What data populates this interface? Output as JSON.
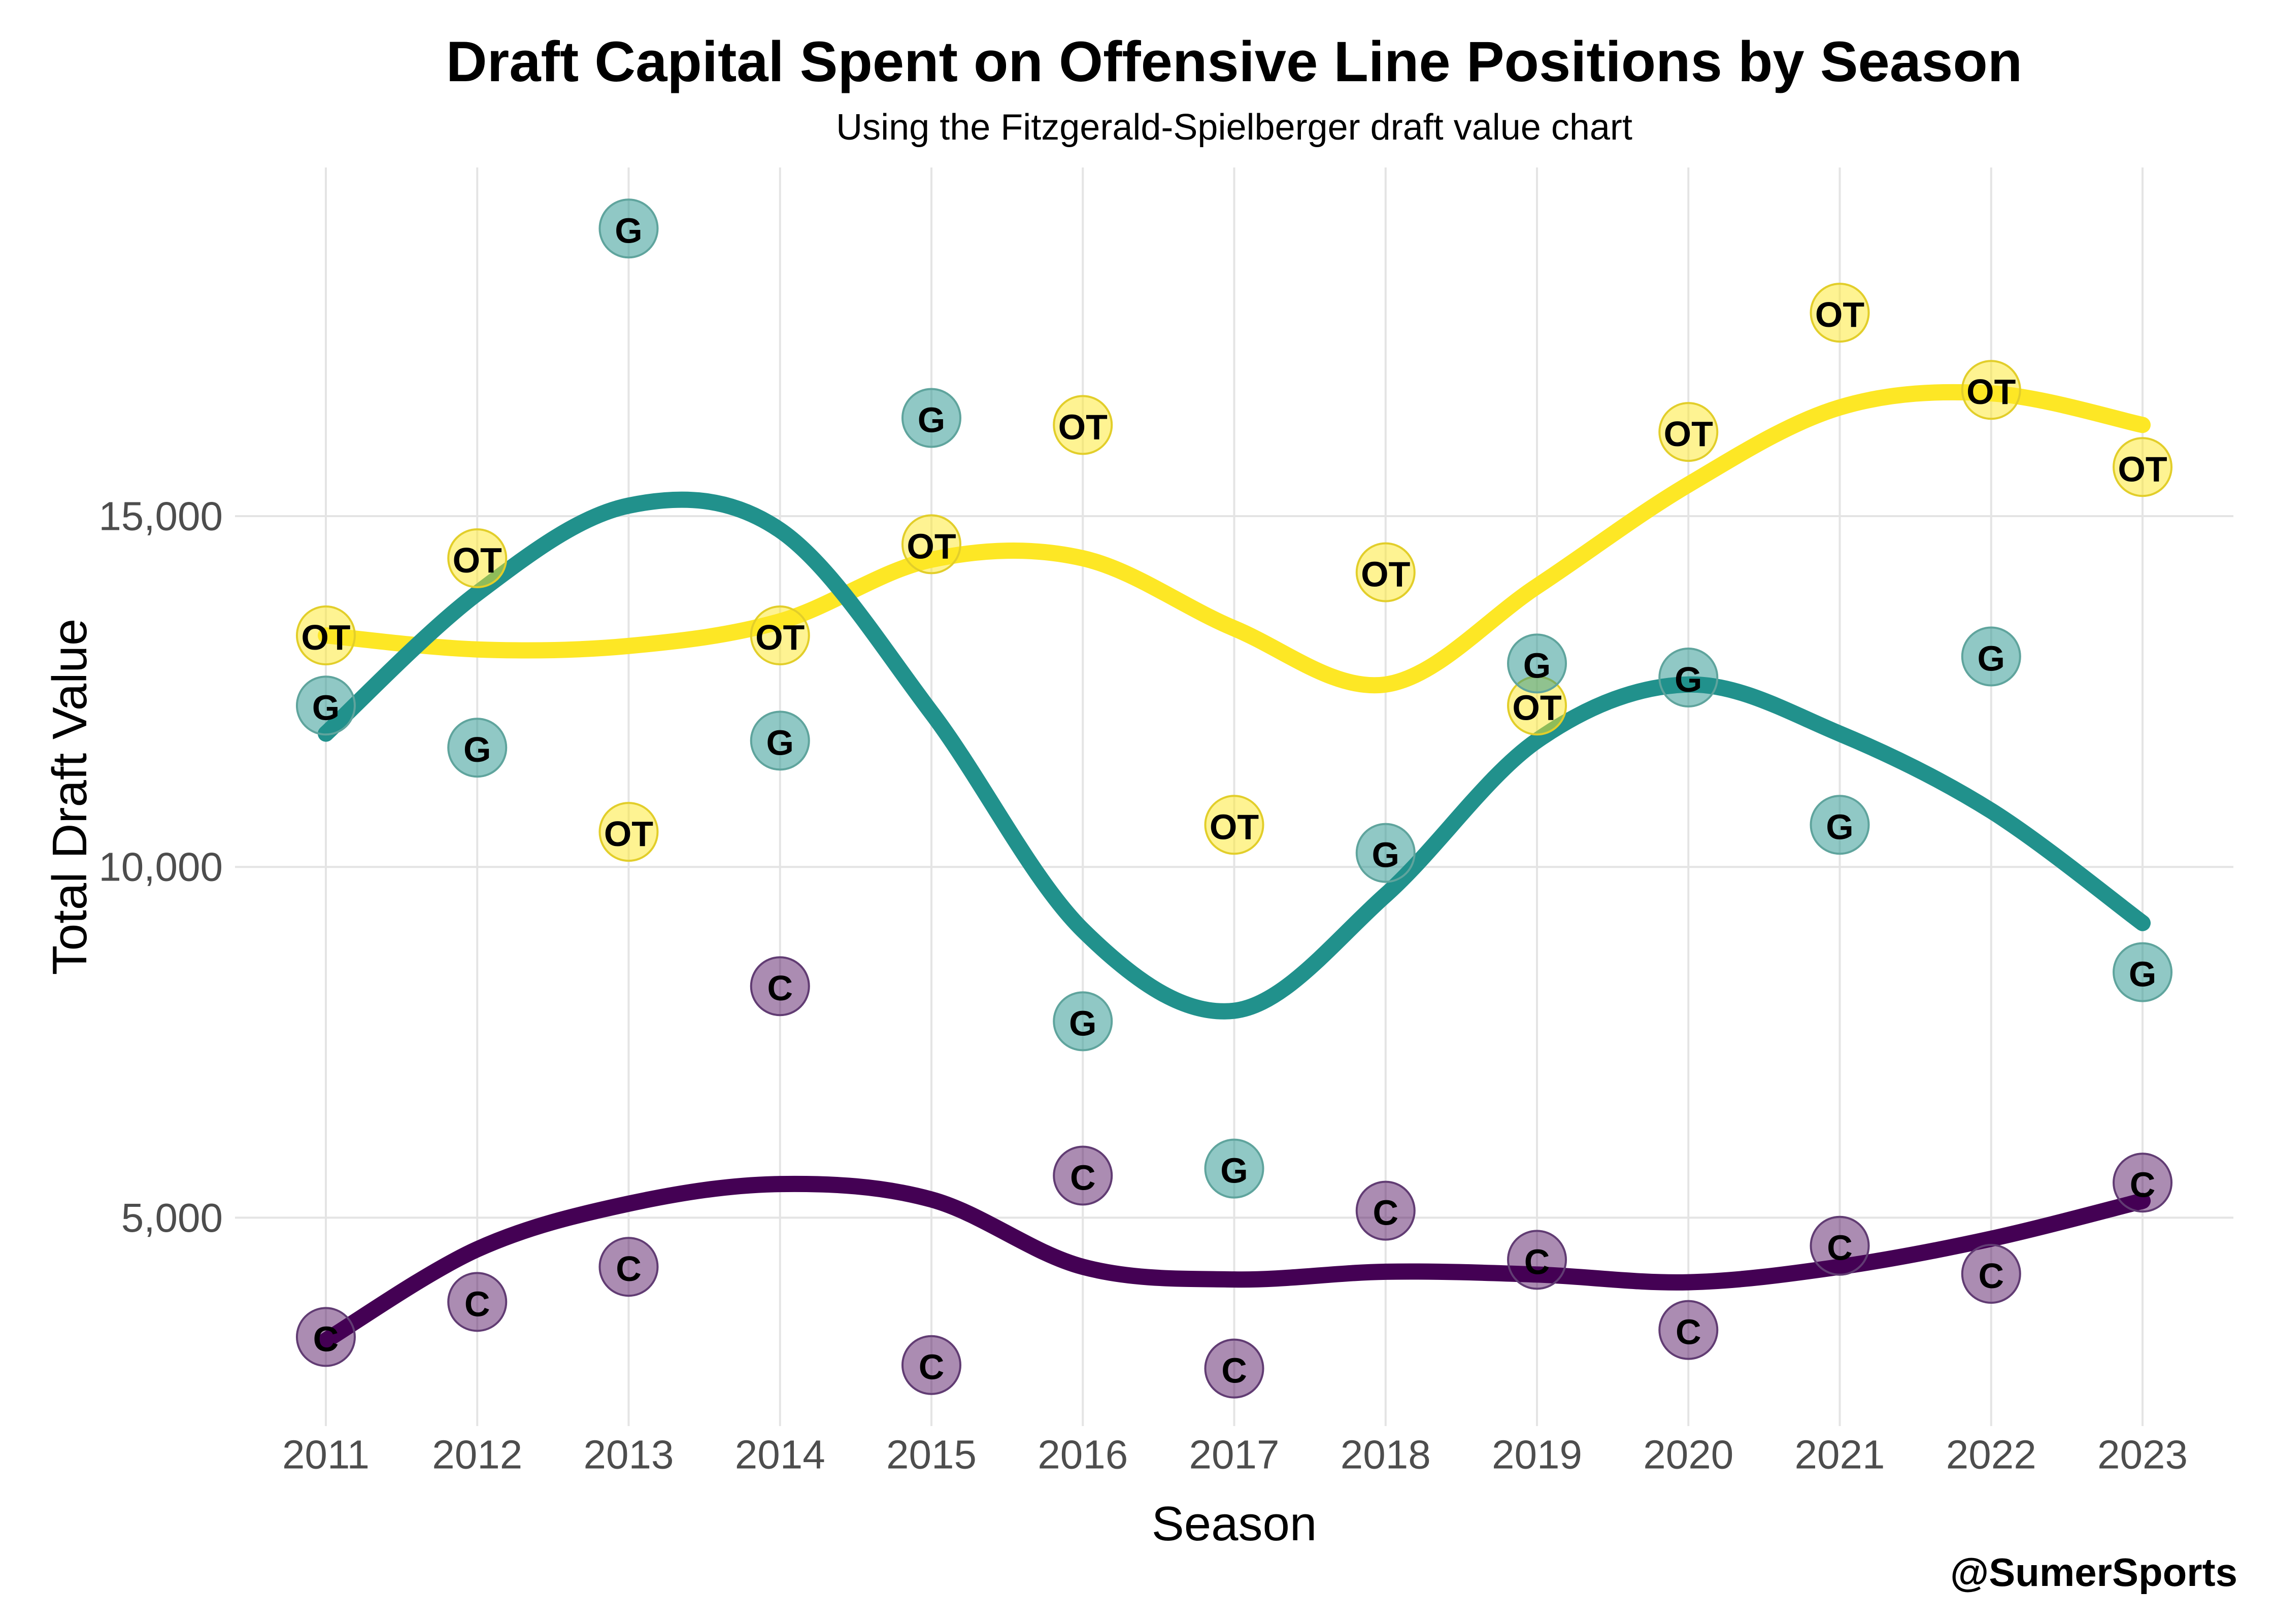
{
  "watermark": "@SumerSports",
  "header": {
    "title": "Draft Capital Spent on Offensive Line Positions by Season",
    "subtitle": "Using the Fitzgerald-Spielberger draft value chart"
  },
  "style": {
    "grid_color": "#E4E4E4",
    "tick_label_color": "#4D4D4D",
    "point_label_color": "#000000",
    "background": "#FFFFFF"
  },
  "chart_data": {
    "type": "scatter",
    "title": "Draft Capital Spent on Offensive Line Positions by Season",
    "subtitle": "Using the Fitzgerald-Spielberger draft value chart",
    "xlabel": "Season",
    "ylabel": "Total Draft Value",
    "legend_position": "none",
    "smoother": "loess trend line per position, points labeled with position code",
    "grid": "major only",
    "xlim": [
      2010.4,
      2023.6
    ],
    "ylim": [
      2030,
      19970
    ],
    "x_ticks": [
      2011,
      2012,
      2013,
      2014,
      2015,
      2016,
      2017,
      2018,
      2019,
      2020,
      2021,
      2022,
      2023
    ],
    "y_ticks": [
      {
        "value": 5000,
        "label": "5,000"
      },
      {
        "value": 10000,
        "label": "10,000"
      },
      {
        "value": 15000,
        "label": "15,000"
      }
    ],
    "series": [
      {
        "name": "OT",
        "marker_label": "OT",
        "line_color": "#FDE725",
        "point_fill": "rgba(253,231,37,0.5)",
        "point_stroke": "#E2CE2A",
        "points": [
          {
            "x": 2011,
            "y": 13300
          },
          {
            "x": 2012,
            "y": 14400
          },
          {
            "x": 2013,
            "y": 10500
          },
          {
            "x": 2014,
            "y": 13300
          },
          {
            "x": 2015,
            "y": 14600
          },
          {
            "x": 2016,
            "y": 16300
          },
          {
            "x": 2017,
            "y": 10600
          },
          {
            "x": 2018,
            "y": 14200
          },
          {
            "x": 2019,
            "y": 12300
          },
          {
            "x": 2020,
            "y": 16200
          },
          {
            "x": 2021,
            "y": 17900
          },
          {
            "x": 2022,
            "y": 16800
          },
          {
            "x": 2023,
            "y": 15700
          }
        ],
        "trend": [
          {
            "x": 2011,
            "y": 13300
          },
          {
            "x": 2012,
            "y": 13100
          },
          {
            "x": 2013,
            "y": 13150
          },
          {
            "x": 2014,
            "y": 13500
          },
          {
            "x": 2015,
            "y": 14380
          },
          {
            "x": 2016,
            "y": 14400
          },
          {
            "x": 2017,
            "y": 13400
          },
          {
            "x": 2018,
            "y": 12600
          },
          {
            "x": 2019,
            "y": 14000
          },
          {
            "x": 2020,
            "y": 15450
          },
          {
            "x": 2021,
            "y": 16550
          },
          {
            "x": 2022,
            "y": 16750
          },
          {
            "x": 2023,
            "y": 16300
          }
        ]
      },
      {
        "name": "C",
        "marker_label": "C",
        "line_color": "#440154",
        "point_fill": "rgba(68,1,84,0.45)",
        "point_stroke": "#613C73",
        "points": [
          {
            "x": 2011,
            "y": 3300
          },
          {
            "x": 2012,
            "y": 3800
          },
          {
            "x": 2013,
            "y": 4300
          },
          {
            "x": 2014,
            "y": 8300
          },
          {
            "x": 2015,
            "y": 2900
          },
          {
            "x": 2016,
            "y": 5600
          },
          {
            "x": 2017,
            "y": 2850
          },
          {
            "x": 2018,
            "y": 5100
          },
          {
            "x": 2019,
            "y": 4400
          },
          {
            "x": 2020,
            "y": 3400
          },
          {
            "x": 2021,
            "y": 4600
          },
          {
            "x": 2022,
            "y": 4200
          },
          {
            "x": 2023,
            "y": 5500
          }
        ],
        "trend": [
          {
            "x": 2011,
            "y": 3250
          },
          {
            "x": 2012,
            "y": 4550
          },
          {
            "x": 2013,
            "y": 5200
          },
          {
            "x": 2014,
            "y": 5480
          },
          {
            "x": 2015,
            "y": 5260
          },
          {
            "x": 2016,
            "y": 4300
          },
          {
            "x": 2017,
            "y": 4120
          },
          {
            "x": 2018,
            "y": 4230
          },
          {
            "x": 2019,
            "y": 4190
          },
          {
            "x": 2020,
            "y": 4080
          },
          {
            "x": 2021,
            "y": 4300
          },
          {
            "x": 2022,
            "y": 4700
          },
          {
            "x": 2023,
            "y": 5240
          }
        ]
      },
      {
        "name": "G",
        "marker_label": "G",
        "line_color": "#21918C",
        "point_fill": "rgba(33,145,140,0.5)",
        "point_stroke": "#5FA49D",
        "points": [
          {
            "x": 2011,
            "y": 12300
          },
          {
            "x": 2012,
            "y": 11700
          },
          {
            "x": 2013,
            "y": 19100
          },
          {
            "x": 2014,
            "y": 11800
          },
          {
            "x": 2015,
            "y": 16400
          },
          {
            "x": 2016,
            "y": 7800
          },
          {
            "x": 2017,
            "y": 5700
          },
          {
            "x": 2018,
            "y": 10200
          },
          {
            "x": 2019,
            "y": 12900
          },
          {
            "x": 2020,
            "y": 12700
          },
          {
            "x": 2021,
            "y": 10600
          },
          {
            "x": 2022,
            "y": 13000
          },
          {
            "x": 2023,
            "y": 8500
          }
        ],
        "trend": [
          {
            "x": 2011,
            "y": 11900
          },
          {
            "x": 2012,
            "y": 13900
          },
          {
            "x": 2013,
            "y": 15150
          },
          {
            "x": 2014,
            "y": 14800
          },
          {
            "x": 2015,
            "y": 12200
          },
          {
            "x": 2016,
            "y": 9100
          },
          {
            "x": 2017,
            "y": 7950
          },
          {
            "x": 2018,
            "y": 9600
          },
          {
            "x": 2019,
            "y": 11800
          },
          {
            "x": 2020,
            "y": 12600
          },
          {
            "x": 2021,
            "y": 11900
          },
          {
            "x": 2022,
            "y": 10800
          },
          {
            "x": 2023,
            "y": 9200
          }
        ]
      }
    ]
  }
}
